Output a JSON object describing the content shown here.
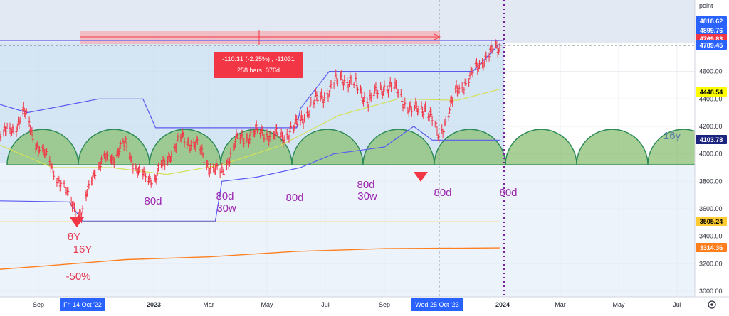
{
  "axis": {
    "unit_label": "point",
    "price_ticks": [
      "4600.00",
      "4400.00",
      "4200.00",
      "4000.00",
      "3800.00",
      "3600.00",
      "3400.00",
      "3200.00",
      "3000.00"
    ],
    "time_ticks": [
      "Sep",
      "2023",
      "Mar",
      "May",
      "Jul",
      "Sep",
      "2024",
      "Mar",
      "May",
      "Jul"
    ],
    "crosshair_x_label": "Fri 14 Oct '22",
    "crosshair_x_label_2": "Wed 25 Oct '23"
  },
  "price_tags": [
    {
      "text": "4818.62",
      "bg": "#2962ff",
      "fg": "#ffffff",
      "value": 4818.62
    },
    {
      "text": "4899.76",
      "bg": "#2962ff",
      "fg": "#ffffff",
      "value": 4899.76
    },
    {
      "text": "4769.83",
      "bg": "#f23645",
      "fg": "#ffffff",
      "value": 4769.83
    },
    {
      "text": "4789.45",
      "bg": "#2962ff",
      "fg": "#ffffff",
      "value": 4789.45
    },
    {
      "text": "4448.54",
      "bg": "#ffff00",
      "fg": "#000000",
      "value": 4448.54
    },
    {
      "text": "4103.78",
      "bg": "#1a237e",
      "fg": "#ffffff",
      "value": 4103.78
    },
    {
      "text": "3505.24",
      "bg": "#ffcc33",
      "fg": "#000000",
      "value": 3505.24
    },
    {
      "text": "3314.36",
      "bg": "#ff7f1e",
      "fg": "#ffffff",
      "value": 3314.36
    }
  ],
  "measure_box": {
    "line1": "-110.31 (-2.25%) , -11031",
    "line2": "258 bars, 376d",
    "color": "#f23645"
  },
  "annotations": {
    "low_8y": "8Y",
    "low_16y": "16Y",
    "pct": "-50%",
    "d80_1": "80d",
    "d80_2": "80d",
    "d80_2b": "30w",
    "d80_3": "80d",
    "d80_4": "80d",
    "d80_4b": "30w",
    "d80_5": "80d",
    "d80_6": "80d",
    "cycle_16y": "16y"
  },
  "colors": {
    "candle": "#f23645",
    "band": "#5b5bf2",
    "ma_yellow": "#d4e157",
    "ma_orange": "#ff7f1e",
    "level_yellow": "#ffcc33",
    "arc_fill": "#8bbf73",
    "arc_stroke": "#2e8b57",
    "annotation_purple": "#9c27b0",
    "annotation_red": "#f23645",
    "vline_dotted": "#7b1fa2"
  },
  "chart_data": {
    "type": "line",
    "title": "",
    "ylabel": "point",
    "ylim": [
      3000,
      4950
    ],
    "x": [
      "2022-08-01",
      "2022-08-16",
      "2022-09-01",
      "2022-09-15",
      "2022-09-30",
      "2022-10-13",
      "2022-10-28",
      "2022-11-15",
      "2022-12-01",
      "2022-12-16",
      "2023-01-03",
      "2023-01-18",
      "2023-02-02",
      "2023-02-17",
      "2023-03-03",
      "2023-03-14",
      "2023-03-31",
      "2023-04-17",
      "2023-05-01",
      "2023-05-16",
      "2023-06-01",
      "2023-06-16",
      "2023-07-03",
      "2023-07-18",
      "2023-08-01",
      "2023-08-16",
      "2023-09-01",
      "2023-09-15",
      "2023-09-29",
      "2023-10-13",
      "2023-10-27",
      "2023-11-14",
      "2023-12-01",
      "2023-12-15",
      "2023-12-29"
    ],
    "series": [
      {
        "name": "",
        "values": [
          4150,
          4300,
          4050,
          3900,
          3680,
          3560,
          3900,
          3980,
          4060,
          3850,
          3820,
          4000,
          4120,
          4050,
          3900,
          3850,
          4100,
          4150,
          4150,
          4120,
          4200,
          4350,
          4450,
          4560,
          4500,
          4380,
          4500,
          4450,
          4300,
          4350,
          4120,
          4450,
          4580,
          4720,
          4770
        ]
      }
    ]
  }
}
